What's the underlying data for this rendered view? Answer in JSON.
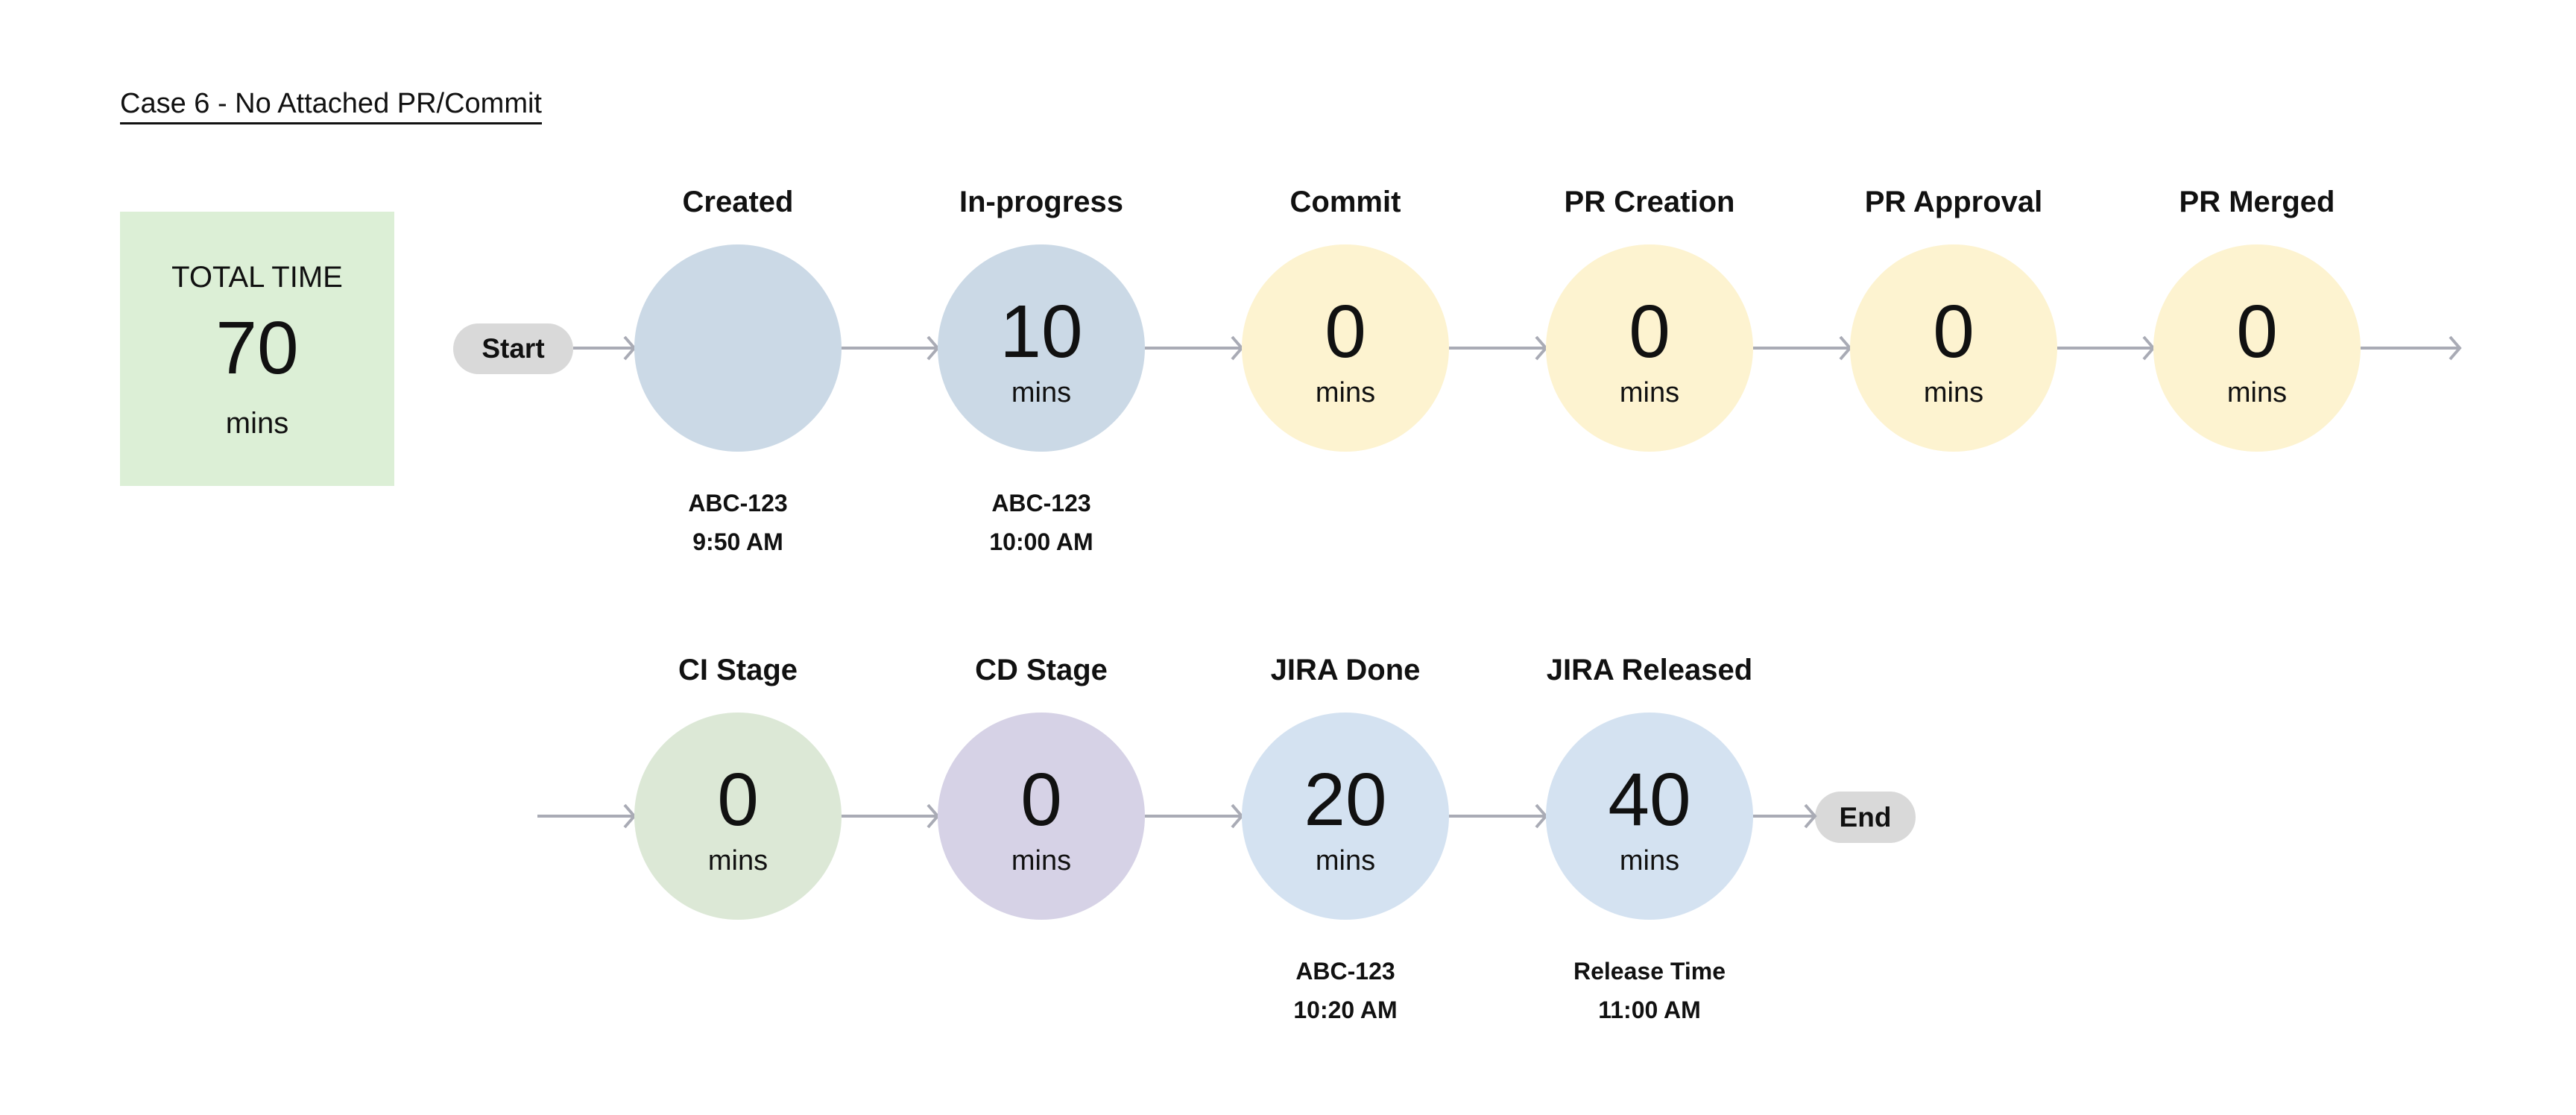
{
  "title": "Case 6 - No Attached PR/Commit",
  "total": {
    "label": "TOTAL TIME",
    "value": "70",
    "unit": "mins"
  },
  "start_label": "Start",
  "end_label": "End",
  "colors": {
    "arrow": "#a9abb5",
    "pill": "#d9d9d9",
    "total_bg": "#dcefd6"
  },
  "stages": [
    {
      "label": "Created",
      "value": "",
      "unit": "",
      "sub1": "ABC-123",
      "sub2": "9:50 AM",
      "color": "#cbd9e6"
    },
    {
      "label": "In-progress",
      "value": "10",
      "unit": "mins",
      "sub1": "ABC-123",
      "sub2": "10:00 AM",
      "color": "#cbd9e6"
    },
    {
      "label": "Commit",
      "value": "0",
      "unit": "mins",
      "color": "#fdf3d0"
    },
    {
      "label": "PR Creation",
      "value": "0",
      "unit": "mins",
      "color": "#fdf3d0"
    },
    {
      "label": "PR Approval",
      "value": "0",
      "unit": "mins",
      "color": "#fdf3d0"
    },
    {
      "label": "PR Merged",
      "value": "0",
      "unit": "mins",
      "color": "#fdf3d0"
    },
    {
      "label": "CI Stage",
      "value": "0",
      "unit": "mins",
      "color": "#dce8d6"
    },
    {
      "label": "CD Stage",
      "value": "0",
      "unit": "mins",
      "color": "#d6d2e6"
    },
    {
      "label": "JIRA Done",
      "value": "20",
      "unit": "mins",
      "sub1": "ABC-123",
      "sub2": "10:20 AM",
      "color": "#d4e2f1"
    },
    {
      "label": "JIRA Released",
      "value": "40",
      "unit": "mins",
      "sub1": "Release Time",
      "sub2": "11:00 AM",
      "color": "#d4e2f1"
    }
  ]
}
